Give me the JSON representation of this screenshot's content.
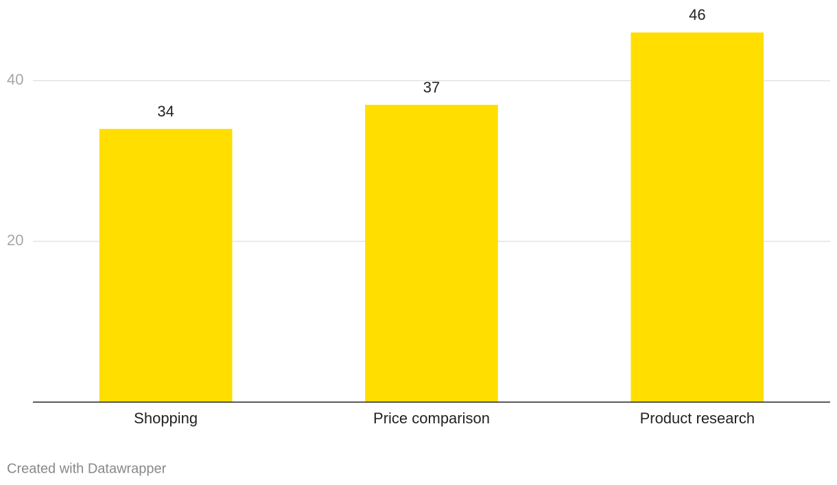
{
  "chart_data": {
    "type": "bar",
    "categories": [
      "Shopping",
      "Price comparison",
      "Product research"
    ],
    "values": [
      34,
      37,
      46
    ],
    "color": "#ffde00",
    "ylim": [
      0,
      50
    ],
    "yticks": [
      20,
      40
    ],
    "grid": true,
    "footer": "Created with Datawrapper"
  }
}
